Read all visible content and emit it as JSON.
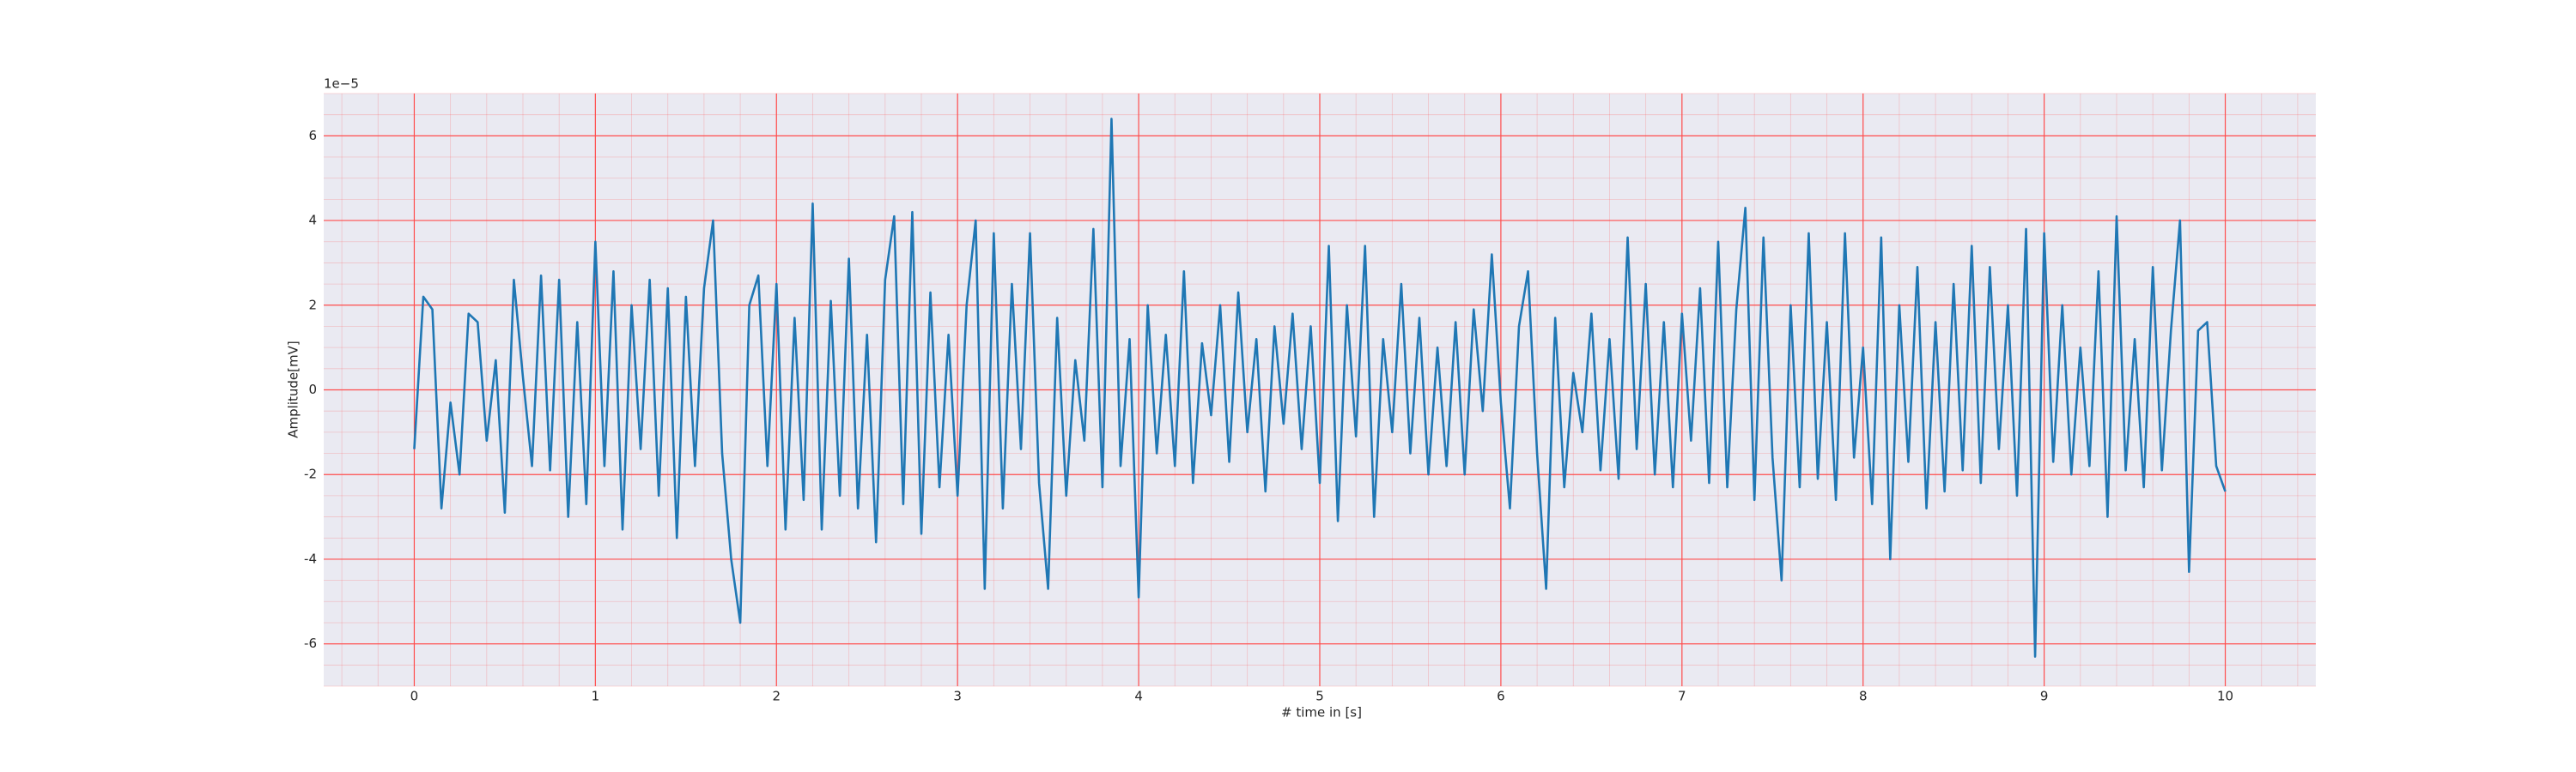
{
  "chart_data": {
    "type": "line",
    "x_label": "# time in [s]",
    "y_label": "Amplitude[mV]",
    "y_offset_label": "1e−5",
    "x": [
      0,
      0.05,
      0.1,
      0.15,
      0.2,
      0.25,
      0.3,
      0.35,
      0.4,
      0.45,
      0.5,
      0.55,
      0.6,
      0.65,
      0.7,
      0.75,
      0.8,
      0.85,
      0.9,
      0.95,
      1,
      1.05,
      1.1,
      1.15,
      1.2,
      1.25,
      1.3,
      1.35,
      1.4,
      1.45,
      1.5,
      1.55,
      1.6,
      1.65,
      1.7,
      1.75,
      1.8,
      1.85,
      1.9,
      1.95,
      2,
      2.05,
      2.1,
      2.15,
      2.2,
      2.25,
      2.3,
      2.35,
      2.4,
      2.45,
      2.5,
      2.55,
      2.6,
      2.65,
      2.7,
      2.75,
      2.8,
      2.85,
      2.9,
      2.95,
      3,
      3.05,
      3.1,
      3.15,
      3.2,
      3.25,
      3.3,
      3.35,
      3.4,
      3.45,
      3.5,
      3.55,
      3.6,
      3.65,
      3.7,
      3.75,
      3.8,
      3.85,
      3.9,
      3.95,
      4,
      4.05,
      4.1,
      4.15,
      4.2,
      4.25,
      4.3,
      4.35,
      4.4,
      4.45,
      4.5,
      4.55,
      4.6,
      4.65,
      4.7,
      4.75,
      4.8,
      4.85,
      4.9,
      4.95,
      5,
      5.05,
      5.1,
      5.15,
      5.2,
      5.25,
      5.3,
      5.35,
      5.4,
      5.45,
      5.5,
      5.55,
      5.6,
      5.65,
      5.7,
      5.75,
      5.8,
      5.85,
      5.9,
      5.95,
      6,
      6.05,
      6.1,
      6.15,
      6.2,
      6.25,
      6.3,
      6.35,
      6.4,
      6.45,
      6.5,
      6.55,
      6.6,
      6.65,
      6.7,
      6.75,
      6.8,
      6.85,
      6.9,
      6.95,
      7,
      7.05,
      7.1,
      7.15,
      7.2,
      7.25,
      7.3,
      7.35,
      7.4,
      7.45,
      7.5,
      7.55,
      7.6,
      7.65,
      7.7,
      7.75,
      7.8,
      7.85,
      7.9,
      7.95,
      8,
      8.05,
      8.1,
      8.15,
      8.2,
      8.25,
      8.3,
      8.35,
      8.4,
      8.45,
      8.5,
      8.55,
      8.6,
      8.65,
      8.7,
      8.75,
      8.8,
      8.85,
      8.9,
      8.95,
      9,
      9.05,
      9.1,
      9.15,
      9.2,
      9.25,
      9.3,
      9.35,
      9.4,
      9.45,
      9.5,
      9.55,
      9.6,
      9.65,
      9.7,
      9.75,
      9.8,
      9.85,
      9.9,
      9.95,
      10
    ],
    "series": [
      {
        "color": "#1f77b4",
        "values": [
          -1.4,
          2.2,
          1.9,
          -2.8,
          -0.3,
          -2.0,
          1.8,
          1.6,
          -1.2,
          0.7,
          -2.9,
          2.6,
          0.3,
          -1.8,
          2.7,
          -1.9,
          2.6,
          -3.0,
          1.6,
          -2.7,
          3.5,
          -1.8,
          2.8,
          -3.3,
          2.0,
          -1.4,
          2.6,
          -2.5,
          2.4,
          -3.5,
          2.2,
          -1.8,
          2.4,
          4.0,
          -1.5,
          -4.0,
          -5.5,
          2.0,
          2.7,
          -1.8,
          2.5,
          -3.3,
          1.7,
          -2.6,
          4.4,
          -3.3,
          2.1,
          -2.5,
          3.1,
          -2.8,
          1.3,
          -3.6,
          2.6,
          4.1,
          -2.7,
          4.2,
          -3.4,
          2.3,
          -2.3,
          1.3,
          -2.5,
          2.0,
          4.0,
          -4.7,
          3.7,
          -2.8,
          2.5,
          -1.4,
          3.7,
          -2.2,
          -4.7,
          1.7,
          -2.5,
          0.7,
          -1.2,
          3.8,
          -2.3,
          6.4,
          -1.8,
          1.2,
          -4.9,
          2.0,
          -1.5,
          1.3,
          -1.8,
          2.8,
          -2.2,
          1.1,
          -0.6,
          2.0,
          -1.7,
          2.3,
          -1.0,
          1.2,
          -2.4,
          1.5,
          -0.8,
          1.8,
          -1.4,
          1.5,
          -2.2,
          3.4,
          -3.1,
          2.0,
          -1.1,
          3.4,
          -3.0,
          1.2,
          -1.0,
          2.5,
          -1.5,
          1.7,
          -2.0,
          1.0,
          -1.8,
          1.6,
          -2.0,
          1.9,
          -0.5,
          3.2,
          -0.3,
          -2.8,
          1.5,
          2.8,
          -1.5,
          -4.7,
          1.7,
          -2.3,
          0.4,
          -1.0,
          1.8,
          -1.9,
          1.2,
          -2.1,
          3.6,
          -1.4,
          2.5,
          -2.0,
          1.6,
          -2.3,
          1.8,
          -1.2,
          2.4,
          -2.2,
          3.5,
          -2.3,
          1.9,
          4.3,
          -2.6,
          3.6,
          -1.6,
          -4.5,
          2.0,
          -2.3,
          3.7,
          -2.1,
          1.6,
          -2.6,
          3.7,
          -1.6,
          1.0,
          -2.7,
          3.6,
          -4.0,
          2.0,
          -1.7,
          2.9,
          -2.8,
          1.6,
          -2.4,
          2.5,
          -1.9,
          3.4,
          -2.2,
          2.9,
          -1.4,
          2.0,
          -2.5,
          3.8,
          -6.3,
          3.7,
          -1.7,
          2.0,
          -2.0,
          1.0,
          -1.8,
          2.8,
          -3.0,
          4.1,
          -1.9,
          1.2,
          -2.3,
          2.9,
          -1.9,
          1.4,
          4.0,
          -4.3,
          1.4,
          1.6,
          -1.8,
          -2.4
        ]
      }
    ],
    "xlim": [
      -0.5,
      10.5
    ],
    "xticks": [
      0,
      1,
      2,
      3,
      4,
      5,
      6,
      7,
      8,
      9,
      10
    ],
    "ylim": [
      -7,
      7
    ],
    "yticks": [
      -6,
      -4,
      -2,
      0,
      2,
      4,
      6
    ],
    "grid": true,
    "grid_color": "#ff4d4d",
    "minor_grid": true,
    "background": "#eaeaf2"
  }
}
